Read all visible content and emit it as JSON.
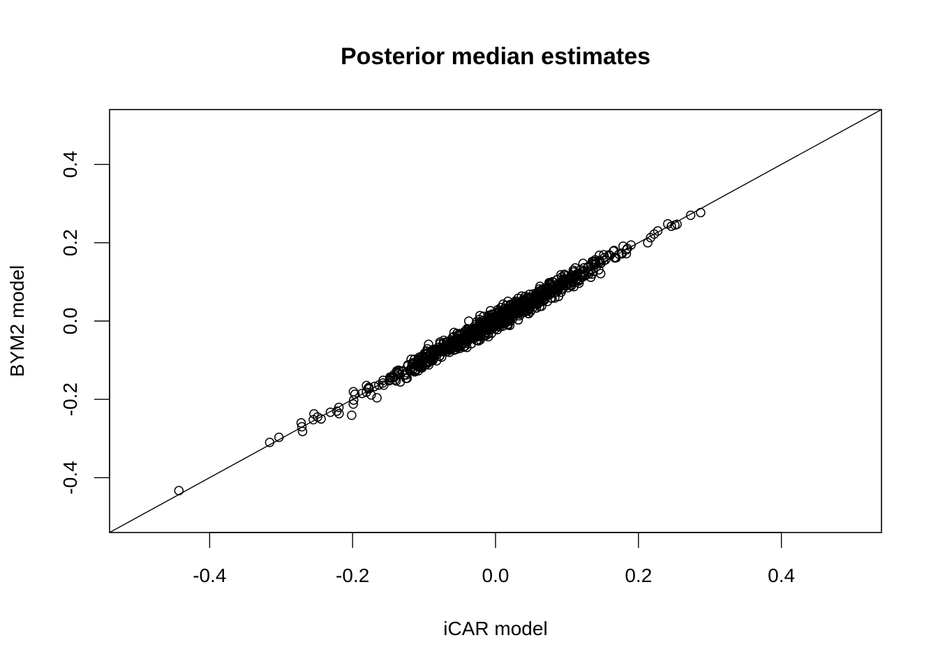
{
  "chart_data": {
    "type": "scatter",
    "title": "Posterior median estimates",
    "xlabel": "iCAR model",
    "ylabel": "BYM2 model",
    "xlim": [
      -0.54,
      0.54
    ],
    "ylim": [
      -0.54,
      0.54
    ],
    "x_ticks": [
      -0.4,
      -0.2,
      0.0,
      0.2,
      0.4
    ],
    "x_tick_labels": [
      "-0.4",
      "-0.2",
      "0.0",
      "0.2",
      "0.4"
    ],
    "y_ticks": [
      -0.4,
      -0.2,
      0.0,
      0.2,
      0.4
    ],
    "y_tick_labels": [
      "-0.4",
      "-0.2",
      "0.0",
      "0.2",
      "0.4"
    ],
    "grid": false,
    "legend": "none",
    "marker": "open-circle",
    "reference_line": {
      "intercept": 0,
      "slope": 1
    },
    "outliers": [
      {
        "x": -0.443,
        "y": -0.433
      },
      {
        "x": -0.316,
        "y": -0.31
      },
      {
        "x": -0.303,
        "y": -0.297
      },
      {
        "x": -0.272,
        "y": -0.26
      },
      {
        "x": -0.271,
        "y": -0.27
      },
      {
        "x": -0.27,
        "y": -0.282
      },
      {
        "x": -0.254,
        "y": -0.237
      },
      {
        "x": -0.255,
        "y": -0.252
      },
      {
        "x": -0.249,
        "y": -0.245
      },
      {
        "x": -0.244,
        "y": -0.25
      },
      {
        "x": -0.231,
        "y": -0.233
      },
      {
        "x": -0.222,
        "y": -0.23
      },
      {
        "x": 0.213,
        "y": 0.2
      },
      {
        "x": 0.217,
        "y": 0.213
      },
      {
        "x": 0.222,
        "y": 0.222
      },
      {
        "x": 0.227,
        "y": 0.23
      },
      {
        "x": 0.241,
        "y": 0.248
      },
      {
        "x": 0.246,
        "y": 0.242
      },
      {
        "x": 0.251,
        "y": 0.245
      },
      {
        "x": 0.254,
        "y": 0.247
      },
      {
        "x": 0.273,
        "y": 0.27
      },
      {
        "x": 0.287,
        "y": 0.277
      }
    ],
    "bulk": {
      "x_range": [
        -0.22,
        0.2
      ],
      "slope": 1.0,
      "y_spread_sd": 0.012,
      "count": 900,
      "seed": 20240521
    }
  }
}
